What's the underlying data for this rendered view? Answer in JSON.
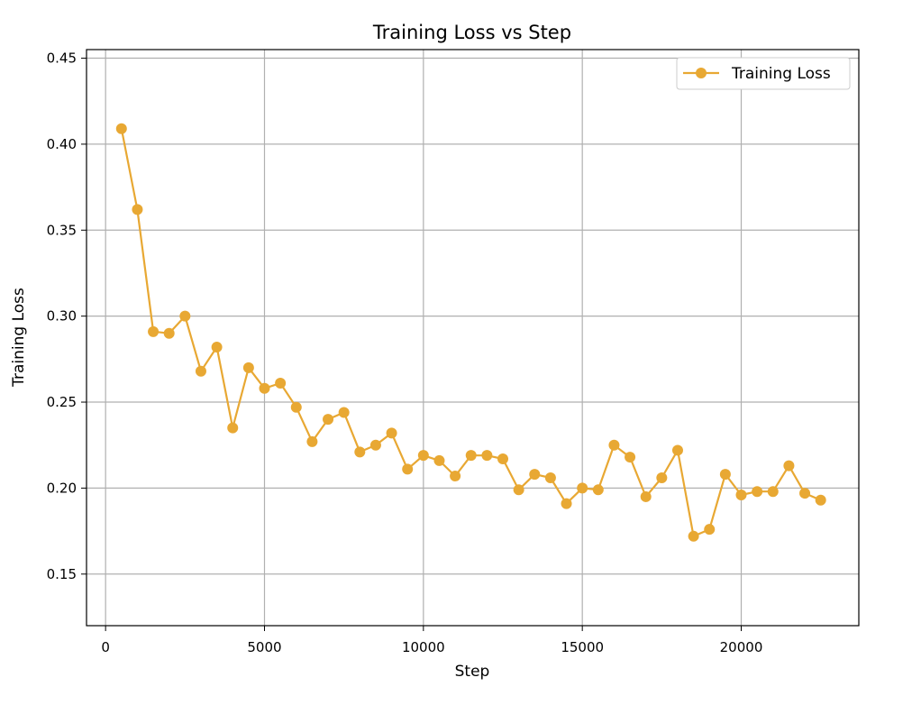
{
  "chart_data": {
    "type": "line",
    "title": "Training Loss vs Step",
    "xlabel": "Step",
    "ylabel": "Training Loss",
    "xlim": [
      -600,
      23700
    ],
    "ylim": [
      0.12,
      0.455
    ],
    "xticks": [
      0,
      5000,
      10000,
      15000,
      20000
    ],
    "xtick_labels": [
      "0",
      "5000",
      "10000",
      "15000",
      "20000"
    ],
    "yticks": [
      0.15,
      0.2,
      0.25,
      0.3,
      0.35,
      0.4,
      0.45
    ],
    "ytick_labels": [
      "0.15",
      "0.20",
      "0.25",
      "0.30",
      "0.35",
      "0.40",
      "0.45"
    ],
    "grid": true,
    "legend_position": "top-right",
    "series": [
      {
        "name": "Training Loss",
        "color": "#e8a833",
        "marker": "circle",
        "x": [
          500,
          1000,
          1500,
          2000,
          2500,
          3000,
          3500,
          4000,
          4500,
          5000,
          5500,
          6000,
          6500,
          7000,
          7500,
          8000,
          8500,
          9000,
          9500,
          10000,
          10500,
          11000,
          11500,
          12000,
          12500,
          13000,
          13500,
          14000,
          14500,
          15000,
          15500,
          16000,
          16500,
          17000,
          17500,
          18000,
          18500,
          19000,
          19500,
          20000,
          20500,
          21000,
          21500,
          22000,
          22500
        ],
        "y": [
          0.409,
          0.362,
          0.291,
          0.29,
          0.3,
          0.268,
          0.282,
          0.235,
          0.27,
          0.258,
          0.261,
          0.247,
          0.227,
          0.24,
          0.244,
          0.221,
          0.225,
          0.232,
          0.211,
          0.219,
          0.216,
          0.207,
          0.219,
          0.219,
          0.217,
          0.199,
          0.208,
          0.206,
          0.191,
          0.2,
          0.199,
          0.225,
          0.218,
          0.195,
          0.206,
          0.222,
          0.172,
          0.176,
          0.208,
          0.196,
          0.198,
          0.198,
          0.213,
          0.197,
          0.193
        ]
      }
    ]
  }
}
